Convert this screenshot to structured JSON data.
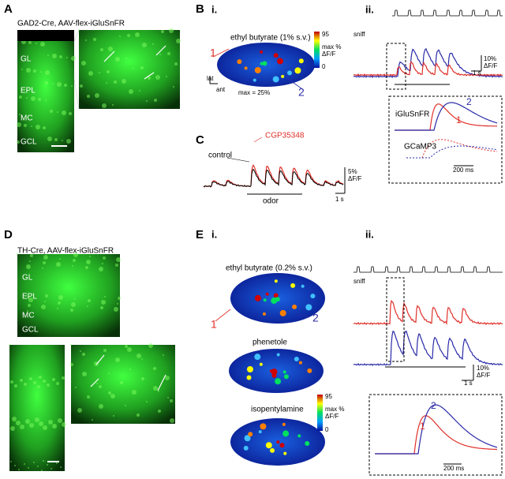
{
  "panel_a": {
    "label": "A",
    "title": "GAD2-Cre, AAV-flex-iGluSnFR",
    "layers": [
      "GL",
      "EPL",
      "MC",
      "GCL"
    ]
  },
  "panel_b": {
    "label": "B",
    "sub_i": "i.",
    "odor": "ethyl butyrate (1% s.v.)",
    "colorbar": {
      "max": "95",
      "unit1": "max %",
      "unit2": "ΔF/F",
      "min": "0"
    },
    "roi1": "1",
    "roi2": "2",
    "axis_lat": "lat",
    "axis_ant": "ant",
    "max_note": "max = 25%",
    "sub_ii": "ii.",
    "sniff": "sniff",
    "scale_y": "10%",
    "scale_y_unit": "ΔF/F",
    "scale_x": "1 s",
    "inset": {
      "probe1": "iGluSnFR",
      "roi2": "2",
      "roi1": "1",
      "probe2": "GCaMP3",
      "scale_x": "200 ms"
    }
  },
  "panel_c": {
    "label": "C",
    "drug": "CGP35348",
    "control": "control",
    "odor": "odor",
    "scale_y": "5%",
    "scale_y_unit": "ΔF/F",
    "scale_x": "1 s"
  },
  "panel_d": {
    "label": "D",
    "title": "TH-Cre, AAV-flex-iGluSnFR",
    "layers": [
      "GL",
      "EPL",
      "MC",
      "GCL"
    ]
  },
  "panel_e": {
    "label": "E",
    "sub_i": "i.",
    "odor1": "ethyl butyrate (0.2% s.v.)",
    "roi1": "1",
    "roi2": "2",
    "odor2": "phenetole",
    "odor3": "isopentylamine",
    "colorbar": {
      "max": "95",
      "unit1": "max %",
      "unit2": "ΔF/F",
      "min": "0"
    },
    "sub_ii": "ii.",
    "sniff": "sniff",
    "scale_y": "10%",
    "scale_y_unit": "ΔF/F",
    "scale_x": "1 s",
    "inset": {
      "roi2": "2",
      "roi1": "1",
      "scale_x": "200 ms"
    }
  }
}
